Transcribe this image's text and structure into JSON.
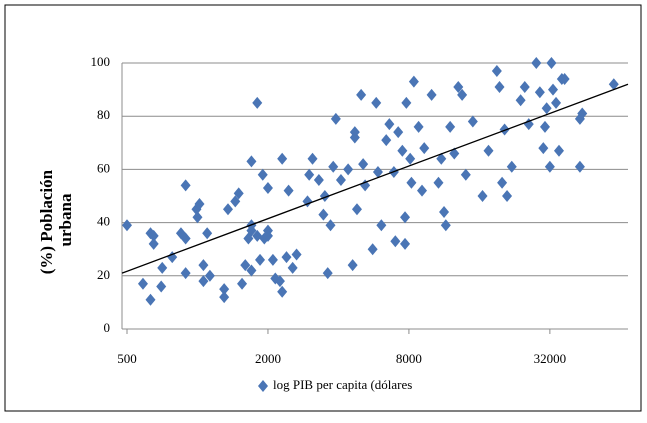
{
  "chart_data": {
    "type": "scatter",
    "ylabel": [
      "(%) Población",
      "urbana"
    ],
    "series": [
      {
        "name": "log PIB per capita (dólares",
        "color": "#4a75b5",
        "x": [
          500,
          585,
          630,
          630,
          650,
          650,
          700,
          707,
          780,
          850,
          890,
          890,
          890,
          990,
          1000,
          1020,
          1060,
          1060,
          1100,
          1130,
          1300,
          1300,
          1350,
          1450,
          1500,
          1550,
          1600,
          1650,
          1700,
          1700,
          1700,
          1700,
          1800,
          1800,
          1850,
          1900,
          1930,
          2000,
          2000,
          2000,
          2100,
          2150,
          2250,
          2300,
          2300,
          2400,
          2450,
          2550,
          2650,
          2950,
          3000,
          3100,
          3300,
          3450,
          3500,
          3600,
          3700,
          3800,
          3900,
          4100,
          4400,
          4600,
          4800,
          4700,
          4700,
          5000,
          5100,
          5200,
          5600,
          5800,
          5900,
          6100,
          6400,
          6600,
          6900,
          7000,
          7200,
          7500,
          7700,
          7700,
          7800,
          8200,
          8100,
          8400,
          8800,
          9100,
          9300,
          10000,
          10700,
          11000,
          11300,
          11500,
          12000,
          12500,
          13000,
          13500,
          14000,
          15000,
          16500,
          17500,
          19000,
          19500,
          20000,
          20500,
          21000,
          22000,
          24000,
          25000,
          26000,
          28000,
          29000,
          30000,
          30500,
          31000,
          32000,
          32500,
          33000,
          34000,
          35000,
          36000,
          37000,
          43000,
          44000,
          43000,
          60000
        ],
        "values": [
          39,
          17,
          11,
          36,
          35,
          32,
          16,
          23,
          27,
          36,
          21,
          34,
          54,
          45,
          42,
          47,
          18,
          24,
          36,
          20,
          12,
          15,
          45,
          48,
          51,
          17,
          24,
          34,
          37,
          39,
          22,
          63,
          85,
          35,
          26,
          58,
          34,
          37,
          53,
          35,
          26,
          19,
          18,
          14,
          64,
          27,
          52,
          23,
          28,
          48,
          58,
          64,
          56,
          43,
          50,
          21,
          39,
          61,
          79,
          56,
          60,
          24,
          45,
          74,
          72,
          88,
          62,
          54,
          30,
          85,
          59,
          39,
          71,
          77,
          59,
          33,
          74,
          67,
          32,
          42,
          85,
          55,
          64,
          93,
          76,
          52,
          68,
          88,
          55,
          64,
          44,
          39,
          76,
          66,
          91,
          88,
          58,
          78,
          50,
          67,
          97,
          91,
          55,
          75,
          50,
          61,
          86,
          91,
          77,
          100,
          89,
          68,
          76,
          83,
          61,
          100,
          90,
          85,
          67,
          94,
          94,
          79,
          81,
          61,
          92
        ]
      }
    ],
    "trendline": {
      "x": [
        476,
        69000
      ],
      "y": [
        21,
        92
      ],
      "color": "#000000"
    },
    "xscale": "log",
    "xlim": [
      476,
      69000
    ],
    "xticks": [
      500,
      2000,
      8000,
      32000
    ],
    "ylim": [
      0,
      100
    ],
    "yticks": [
      0,
      20,
      40,
      60,
      80,
      100
    ],
    "grid": true
  }
}
